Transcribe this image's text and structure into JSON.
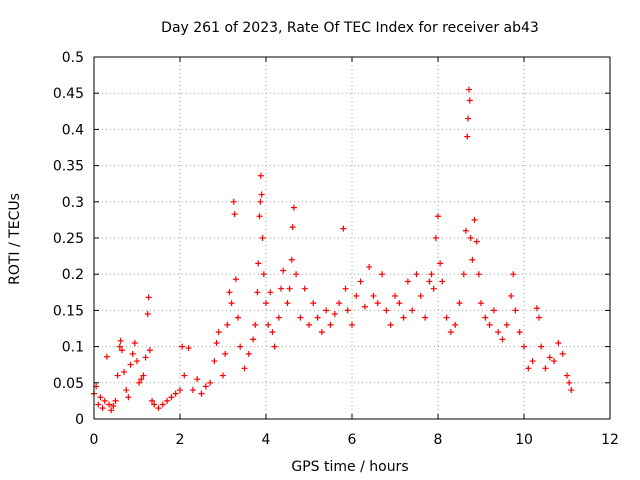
{
  "chart_data": {
    "type": "scatter",
    "title": "Day 261 of 2023, Rate Of TEC Index for receiver ab43",
    "xlabel": "GPS time / hours",
    "ylabel": "ROTI / TECUs",
    "xlim": [
      0,
      12
    ],
    "ylim": [
      0,
      0.5
    ],
    "x_ticks": [
      0,
      2,
      4,
      6,
      8,
      10,
      12
    ],
    "y_ticks": [
      0,
      0.05,
      0.1,
      0.15,
      0.2,
      0.25,
      0.3,
      0.35,
      0.4,
      0.45,
      0.5
    ],
    "x_tick_labels": [
      "0",
      "2",
      "4",
      "6",
      "8",
      "10",
      "12"
    ],
    "y_tick_labels": [
      "0",
      "0.05",
      "0.1",
      "0.15",
      "0.2",
      "0.25",
      "0.3",
      "0.35",
      "0.4",
      "0.45",
      "0.5"
    ],
    "grid": true,
    "marker": "+",
    "color": "#ff0000",
    "series": [
      {
        "name": "ROTI",
        "points": [
          [
            0.0,
            0.035
          ],
          [
            0.05,
            0.045
          ],
          [
            0.1,
            0.02
          ],
          [
            0.15,
            0.03
          ],
          [
            0.2,
            0.015
          ],
          [
            0.25,
            0.025
          ],
          [
            0.3,
            0.086
          ],
          [
            0.35,
            0.02
          ],
          [
            0.4,
            0.012
          ],
          [
            0.45,
            0.018
          ],
          [
            0.5,
            0.025
          ],
          [
            0.55,
            0.06
          ],
          [
            0.6,
            0.1
          ],
          [
            0.62,
            0.108
          ],
          [
            0.65,
            0.095
          ],
          [
            0.7,
            0.065
          ],
          [
            0.75,
            0.04
          ],
          [
            0.8,
            0.03
          ],
          [
            0.85,
            0.075
          ],
          [
            0.9,
            0.09
          ],
          [
            0.95,
            0.105
          ],
          [
            1.0,
            0.08
          ],
          [
            1.05,
            0.05
          ],
          [
            1.1,
            0.055
          ],
          [
            1.15,
            0.06
          ],
          [
            1.2,
            0.085
          ],
          [
            1.25,
            0.145
          ],
          [
            1.27,
            0.168
          ],
          [
            1.3,
            0.095
          ],
          [
            1.35,
            0.025
          ],
          [
            1.4,
            0.02
          ],
          [
            1.5,
            0.015
          ],
          [
            1.6,
            0.02
          ],
          [
            1.7,
            0.025
          ],
          [
            1.8,
            0.03
          ],
          [
            1.9,
            0.035
          ],
          [
            2.0,
            0.04
          ],
          [
            2.05,
            0.1
          ],
          [
            2.1,
            0.06
          ],
          [
            2.2,
            0.098
          ],
          [
            2.3,
            0.04
          ],
          [
            2.4,
            0.055
          ],
          [
            2.5,
            0.035
          ],
          [
            2.6,
            0.045
          ],
          [
            2.7,
            0.05
          ],
          [
            2.8,
            0.08
          ],
          [
            2.85,
            0.105
          ],
          [
            2.9,
            0.12
          ],
          [
            3.0,
            0.06
          ],
          [
            3.05,
            0.09
          ],
          [
            3.1,
            0.13
          ],
          [
            3.15,
            0.175
          ],
          [
            3.2,
            0.16
          ],
          [
            3.25,
            0.3
          ],
          [
            3.27,
            0.283
          ],
          [
            3.3,
            0.193
          ],
          [
            3.35,
            0.14
          ],
          [
            3.4,
            0.1
          ],
          [
            3.5,
            0.07
          ],
          [
            3.6,
            0.09
          ],
          [
            3.7,
            0.11
          ],
          [
            3.75,
            0.13
          ],
          [
            3.8,
            0.175
          ],
          [
            3.82,
            0.215
          ],
          [
            3.85,
            0.28
          ],
          [
            3.87,
            0.3
          ],
          [
            3.88,
            0.336
          ],
          [
            3.9,
            0.31
          ],
          [
            3.92,
            0.25
          ],
          [
            3.95,
            0.2
          ],
          [
            4.0,
            0.16
          ],
          [
            4.05,
            0.13
          ],
          [
            4.1,
            0.175
          ],
          [
            4.15,
            0.12
          ],
          [
            4.2,
            0.1
          ],
          [
            4.3,
            0.14
          ],
          [
            4.35,
            0.18
          ],
          [
            4.4,
            0.205
          ],
          [
            4.5,
            0.16
          ],
          [
            4.55,
            0.18
          ],
          [
            4.6,
            0.22
          ],
          [
            4.62,
            0.265
          ],
          [
            4.65,
            0.292
          ],
          [
            4.7,
            0.2
          ],
          [
            4.8,
            0.14
          ],
          [
            4.9,
            0.18
          ],
          [
            5.0,
            0.13
          ],
          [
            5.1,
            0.16
          ],
          [
            5.2,
            0.14
          ],
          [
            5.3,
            0.12
          ],
          [
            5.4,
            0.15
          ],
          [
            5.5,
            0.13
          ],
          [
            5.6,
            0.145
          ],
          [
            5.7,
            0.16
          ],
          [
            5.8,
            0.263
          ],
          [
            5.85,
            0.18
          ],
          [
            5.9,
            0.15
          ],
          [
            6.0,
            0.13
          ],
          [
            6.1,
            0.17
          ],
          [
            6.2,
            0.19
          ],
          [
            6.3,
            0.155
          ],
          [
            6.4,
            0.21
          ],
          [
            6.5,
            0.17
          ],
          [
            6.6,
            0.16
          ],
          [
            6.7,
            0.2
          ],
          [
            6.8,
            0.15
          ],
          [
            6.9,
            0.13
          ],
          [
            7.0,
            0.17
          ],
          [
            7.1,
            0.16
          ],
          [
            7.2,
            0.14
          ],
          [
            7.3,
            0.19
          ],
          [
            7.4,
            0.15
          ],
          [
            7.5,
            0.2
          ],
          [
            7.6,
            0.17
          ],
          [
            7.7,
            0.14
          ],
          [
            7.8,
            0.19
          ],
          [
            7.85,
            0.2
          ],
          [
            7.9,
            0.18
          ],
          [
            7.95,
            0.25
          ],
          [
            8.0,
            0.28
          ],
          [
            8.05,
            0.215
          ],
          [
            8.1,
            0.19
          ],
          [
            8.2,
            0.14
          ],
          [
            8.3,
            0.12
          ],
          [
            8.4,
            0.13
          ],
          [
            8.5,
            0.16
          ],
          [
            8.6,
            0.2
          ],
          [
            8.65,
            0.26
          ],
          [
            8.68,
            0.39
          ],
          [
            8.7,
            0.415
          ],
          [
            8.72,
            0.455
          ],
          [
            8.74,
            0.44
          ],
          [
            8.76,
            0.25
          ],
          [
            8.8,
            0.22
          ],
          [
            8.85,
            0.275
          ],
          [
            8.9,
            0.245
          ],
          [
            8.95,
            0.2
          ],
          [
            9.0,
            0.16
          ],
          [
            9.1,
            0.14
          ],
          [
            9.2,
            0.13
          ],
          [
            9.3,
            0.15
          ],
          [
            9.4,
            0.12
          ],
          [
            9.5,
            0.11
          ],
          [
            9.6,
            0.13
          ],
          [
            9.7,
            0.17
          ],
          [
            9.75,
            0.2
          ],
          [
            9.8,
            0.15
          ],
          [
            9.9,
            0.12
          ],
          [
            10.0,
            0.1
          ],
          [
            10.1,
            0.07
          ],
          [
            10.2,
            0.08
          ],
          [
            10.3,
            0.153
          ],
          [
            10.35,
            0.14
          ],
          [
            10.4,
            0.1
          ],
          [
            10.5,
            0.07
          ],
          [
            10.6,
            0.085
          ],
          [
            10.7,
            0.08
          ],
          [
            10.8,
            0.105
          ],
          [
            10.9,
            0.09
          ],
          [
            11.0,
            0.06
          ],
          [
            11.05,
            0.05
          ],
          [
            11.1,
            0.04
          ]
        ]
      }
    ]
  }
}
